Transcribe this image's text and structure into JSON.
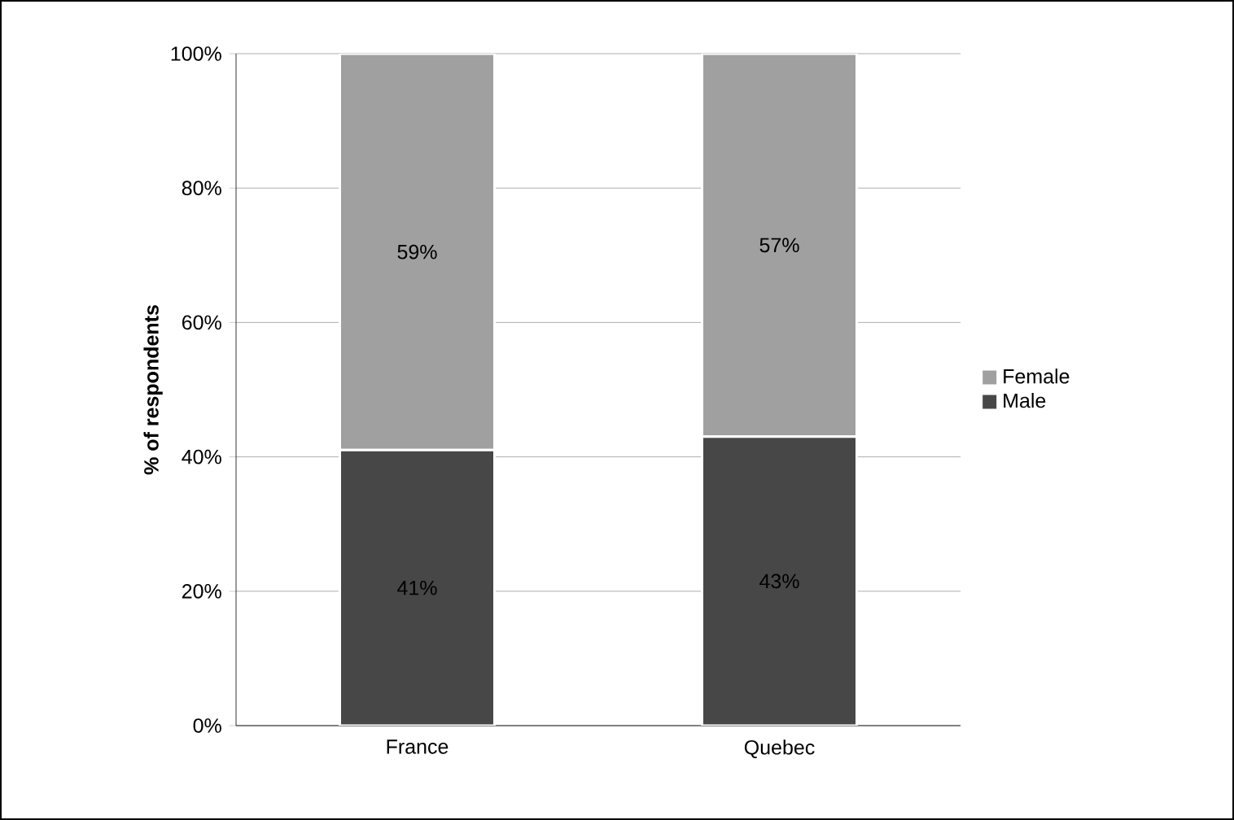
{
  "chart_data": {
    "type": "bar",
    "stacked": true,
    "ylabel": "% of respondents",
    "categories": [
      "France",
      "Quebec"
    ],
    "series": [
      {
        "name": "Male",
        "color": "#474747",
        "values": [
          41,
          43
        ],
        "value_labels": [
          "41%",
          "43%"
        ]
      },
      {
        "name": "Female",
        "color": "#a0a0a0",
        "values": [
          59,
          57
        ],
        "value_labels": [
          "59%",
          "57%"
        ]
      }
    ],
    "ylim": [
      0,
      100
    ],
    "yticks": [
      {
        "value": 0,
        "label": "0%"
      },
      {
        "value": 20,
        "label": "20%"
      },
      {
        "value": 40,
        "label": "40%"
      },
      {
        "value": 60,
        "label": "60%"
      },
      {
        "value": 80,
        "label": "80%"
      },
      {
        "value": 100,
        "label": "100%"
      }
    ],
    "grid": "y",
    "legend": "right"
  }
}
